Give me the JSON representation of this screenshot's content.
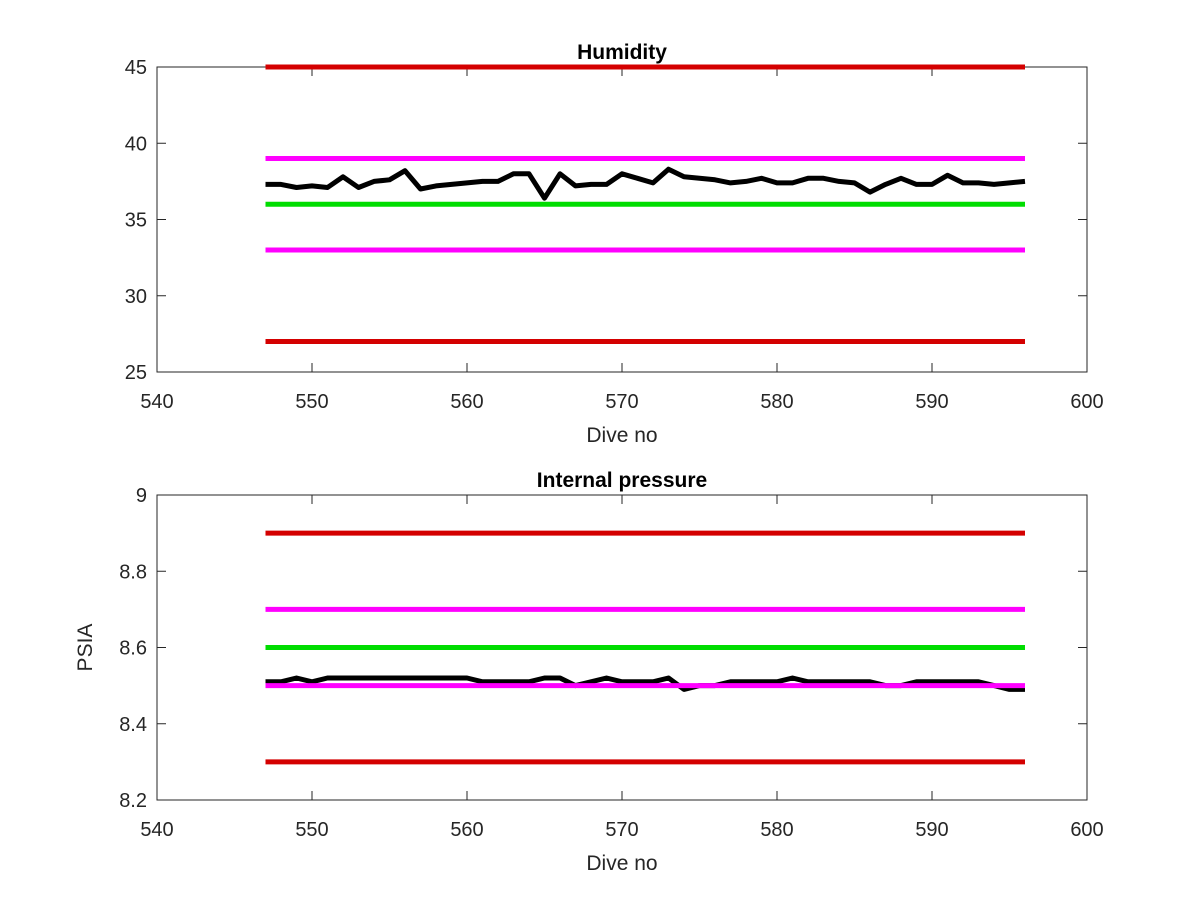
{
  "chart_data": [
    {
      "type": "line",
      "title": "Humidity",
      "xlabel": "Dive no",
      "ylabel": "",
      "xlim": [
        540,
        600
      ],
      "ylim": [
        25,
        45
      ],
      "xticks": [
        540,
        550,
        560,
        570,
        580,
        590,
        600
      ],
      "yticks": [
        25,
        30,
        35,
        40,
        45
      ],
      "grid": false,
      "legend": "none",
      "series": [
        {
          "color": "#d40000",
          "x": [
            547,
            596
          ],
          "y": [
            45,
            45
          ]
        },
        {
          "color": "#ff00ff",
          "x": [
            547,
            596
          ],
          "y": [
            39,
            39
          ]
        },
        {
          "color": "#00dd00",
          "x": [
            547,
            596
          ],
          "y": [
            36,
            36
          ]
        },
        {
          "color": "#ff00ff",
          "x": [
            547,
            596
          ],
          "y": [
            33,
            33
          ]
        },
        {
          "color": "#d40000",
          "x": [
            547,
            596
          ],
          "y": [
            27,
            27
          ]
        },
        {
          "color": "#000000",
          "x": [
            547,
            548,
            549,
            550,
            551,
            552,
            553,
            554,
            555,
            556,
            557,
            558,
            559,
            560,
            561,
            562,
            563,
            564,
            565,
            566,
            567,
            568,
            569,
            570,
            571,
            572,
            573,
            574,
            575,
            576,
            577,
            578,
            579,
            580,
            581,
            582,
            583,
            584,
            585,
            586,
            587,
            588,
            589,
            590,
            591,
            592,
            593,
            594,
            595,
            596
          ],
          "y": [
            37.3,
            37.3,
            37.1,
            37.2,
            37.1,
            37.8,
            37.1,
            37.5,
            37.6,
            38.2,
            37.0,
            37.2,
            37.3,
            37.4,
            37.5,
            37.5,
            38.0,
            38.0,
            36.4,
            38.0,
            37.2,
            37.3,
            37.3,
            38.0,
            37.7,
            37.4,
            38.3,
            37.8,
            37.7,
            37.6,
            37.4,
            37.5,
            37.7,
            37.4,
            37.4,
            37.7,
            37.7,
            37.5,
            37.4,
            36.8,
            37.3,
            37.7,
            37.3,
            37.3,
            37.9,
            37.4,
            37.4,
            37.3,
            37.4,
            37.5
          ]
        }
      ]
    },
    {
      "type": "line",
      "title": "Internal pressure",
      "xlabel": "Dive no",
      "ylabel": "PSIA",
      "xlim": [
        540,
        600
      ],
      "ylim": [
        8.2,
        9
      ],
      "xticks": [
        540,
        550,
        560,
        570,
        580,
        590,
        600
      ],
      "yticks": [
        8.2,
        8.4,
        8.6,
        8.8,
        9
      ],
      "ytick_labels": [
        "8.2",
        "8.4",
        "8.6",
        "8.8",
        "9"
      ],
      "grid": false,
      "legend": "none",
      "series": [
        {
          "color": "#d40000",
          "x": [
            547,
            596
          ],
          "y": [
            8.9,
            8.9
          ]
        },
        {
          "color": "#ff00ff",
          "x": [
            547,
            596
          ],
          "y": [
            8.7,
            8.7
          ]
        },
        {
          "color": "#00dd00",
          "x": [
            547,
            596
          ],
          "y": [
            8.6,
            8.6
          ]
        },
        {
          "color": "#d40000",
          "x": [
            547,
            596
          ],
          "y": [
            8.3,
            8.3
          ]
        },
        {
          "color": "#000000",
          "x": [
            547,
            548,
            549,
            550,
            551,
            552,
            553,
            554,
            555,
            556,
            557,
            558,
            559,
            560,
            561,
            562,
            563,
            564,
            565,
            566,
            567,
            568,
            569,
            570,
            571,
            572,
            573,
            574,
            575,
            576,
            577,
            578,
            579,
            580,
            581,
            582,
            583,
            584,
            585,
            586,
            587,
            588,
            589,
            590,
            591,
            592,
            593,
            594,
            595,
            596
          ],
          "y": [
            8.51,
            8.51,
            8.52,
            8.51,
            8.52,
            8.52,
            8.52,
            8.52,
            8.52,
            8.52,
            8.52,
            8.52,
            8.52,
            8.52,
            8.51,
            8.51,
            8.51,
            8.51,
            8.52,
            8.52,
            8.5,
            8.51,
            8.52,
            8.51,
            8.51,
            8.51,
            8.52,
            8.49,
            8.5,
            8.5,
            8.51,
            8.51,
            8.51,
            8.51,
            8.52,
            8.51,
            8.51,
            8.51,
            8.51,
            8.51,
            8.5,
            8.5,
            8.51,
            8.51,
            8.51,
            8.51,
            8.51,
            8.5,
            8.49,
            8.49
          ]
        },
        {
          "color": "#ff00ff",
          "x": [
            547,
            596
          ],
          "y": [
            8.5,
            8.5
          ]
        }
      ]
    }
  ]
}
